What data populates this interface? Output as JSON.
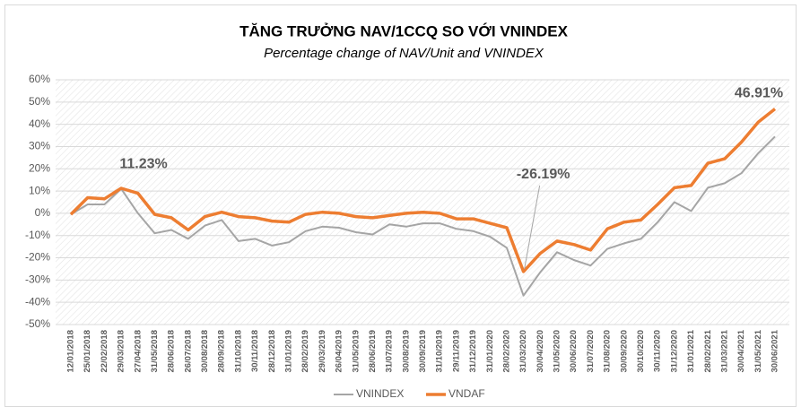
{
  "chart_data": {
    "type": "line",
    "title": "TĂNG TRƯỞNG NAV/1CCQ SO VỚI VNINDEX",
    "subtitle": "Percentage change of NAV/Unit and VNINDEX",
    "categories": [
      "12/01/2018",
      "25/01/2018",
      "22/02/2018",
      "29/03/2018",
      "27/04/2018",
      "31/05/2018",
      "28/06/2018",
      "26/07/2018",
      "30/08/2018",
      "28/09/2018",
      "31/10/2018",
      "30/11/2018",
      "28/12/2018",
      "31/01/2019",
      "28/02/2019",
      "29/03/2019",
      "26/04/2019",
      "31/05/2019",
      "28/06/2019",
      "31/07/2019",
      "30/08/2019",
      "30/09/2019",
      "31/10/2019",
      "29/11/2019",
      "31/12/2019",
      "31/01/2020",
      "28/02/2020",
      "31/03/2020",
      "30/04/2020",
      "31/05/2020",
      "30/06/2020",
      "31/07/2020",
      "31/08/2020",
      "30/09/2020",
      "30/10/2020",
      "30/11/2020",
      "31/12/2020",
      "31/01/2021",
      "28/02/2021",
      "31/03/2021",
      "30/04/2021",
      "31/05/2021",
      "30/06/2021"
    ],
    "series": [
      {
        "name": "VNINDEX",
        "color": "#a5a5a5",
        "values": [
          -0.5,
          4,
          4,
          11,
          0,
          -9,
          -7.5,
          -11.5,
          -5.5,
          -3,
          -12.5,
          -11.5,
          -14.5,
          -13,
          -8,
          -6,
          -6.5,
          -8.5,
          -9.5,
          -5,
          -6,
          -4.5,
          -4.5,
          -7,
          -8,
          -10.5,
          -15.5,
          -37,
          -26.5,
          -17.5,
          -21,
          -23.5,
          -16,
          -13.5,
          -11.5,
          -4,
          5,
          1,
          11.5,
          13.5,
          18,
          27,
          34.5
        ]
      },
      {
        "name": "VNDAF",
        "color": "#ed7d31",
        "values": [
          -0.5,
          7,
          6.5,
          11.23,
          9,
          -0.5,
          -2,
          -7.5,
          -1.5,
          0.5,
          -1.5,
          -2,
          -3.5,
          -4,
          -0.5,
          0.5,
          0,
          -1.5,
          -2,
          -1,
          0,
          0.5,
          0,
          -2.5,
          -2.5,
          -4.5,
          -6.5,
          -26.19,
          -18,
          -12.5,
          -14,
          -16.5,
          -7,
          -4,
          -3,
          4,
          11.5,
          12.5,
          22.5,
          24.5,
          32,
          41,
          46.91
        ],
        "value_labels": [
          null,
          null,
          null,
          "11.23%",
          null,
          null,
          null,
          null,
          null,
          null,
          null,
          null,
          null,
          null,
          null,
          null,
          null,
          null,
          null,
          null,
          null,
          null,
          null,
          null,
          null,
          null,
          null,
          "-26.19%",
          null,
          null,
          null,
          null,
          null,
          null,
          null,
          null,
          null,
          null,
          null,
          null,
          null,
          null,
          "46.91%"
        ]
      }
    ],
    "ylim": [
      -50,
      60
    ],
    "yticks": [
      {
        "value": -50,
        "label": "-50%"
      },
      {
        "value": -40,
        "label": "-40%"
      },
      {
        "value": -30,
        "label": "-30%"
      },
      {
        "value": -20,
        "label": "-20%"
      },
      {
        "value": -10,
        "label": "-10%"
      },
      {
        "value": 0,
        "label": "0%"
      },
      {
        "value": 10,
        "label": "10%"
      },
      {
        "value": 20,
        "label": "20%"
      },
      {
        "value": 30,
        "label": "30%"
      },
      {
        "value": 40,
        "label": "40%"
      },
      {
        "value": 50,
        "label": "50%"
      },
      {
        "value": 60,
        "label": "60%"
      }
    ],
    "grid": true,
    "legend": "bottom"
  }
}
